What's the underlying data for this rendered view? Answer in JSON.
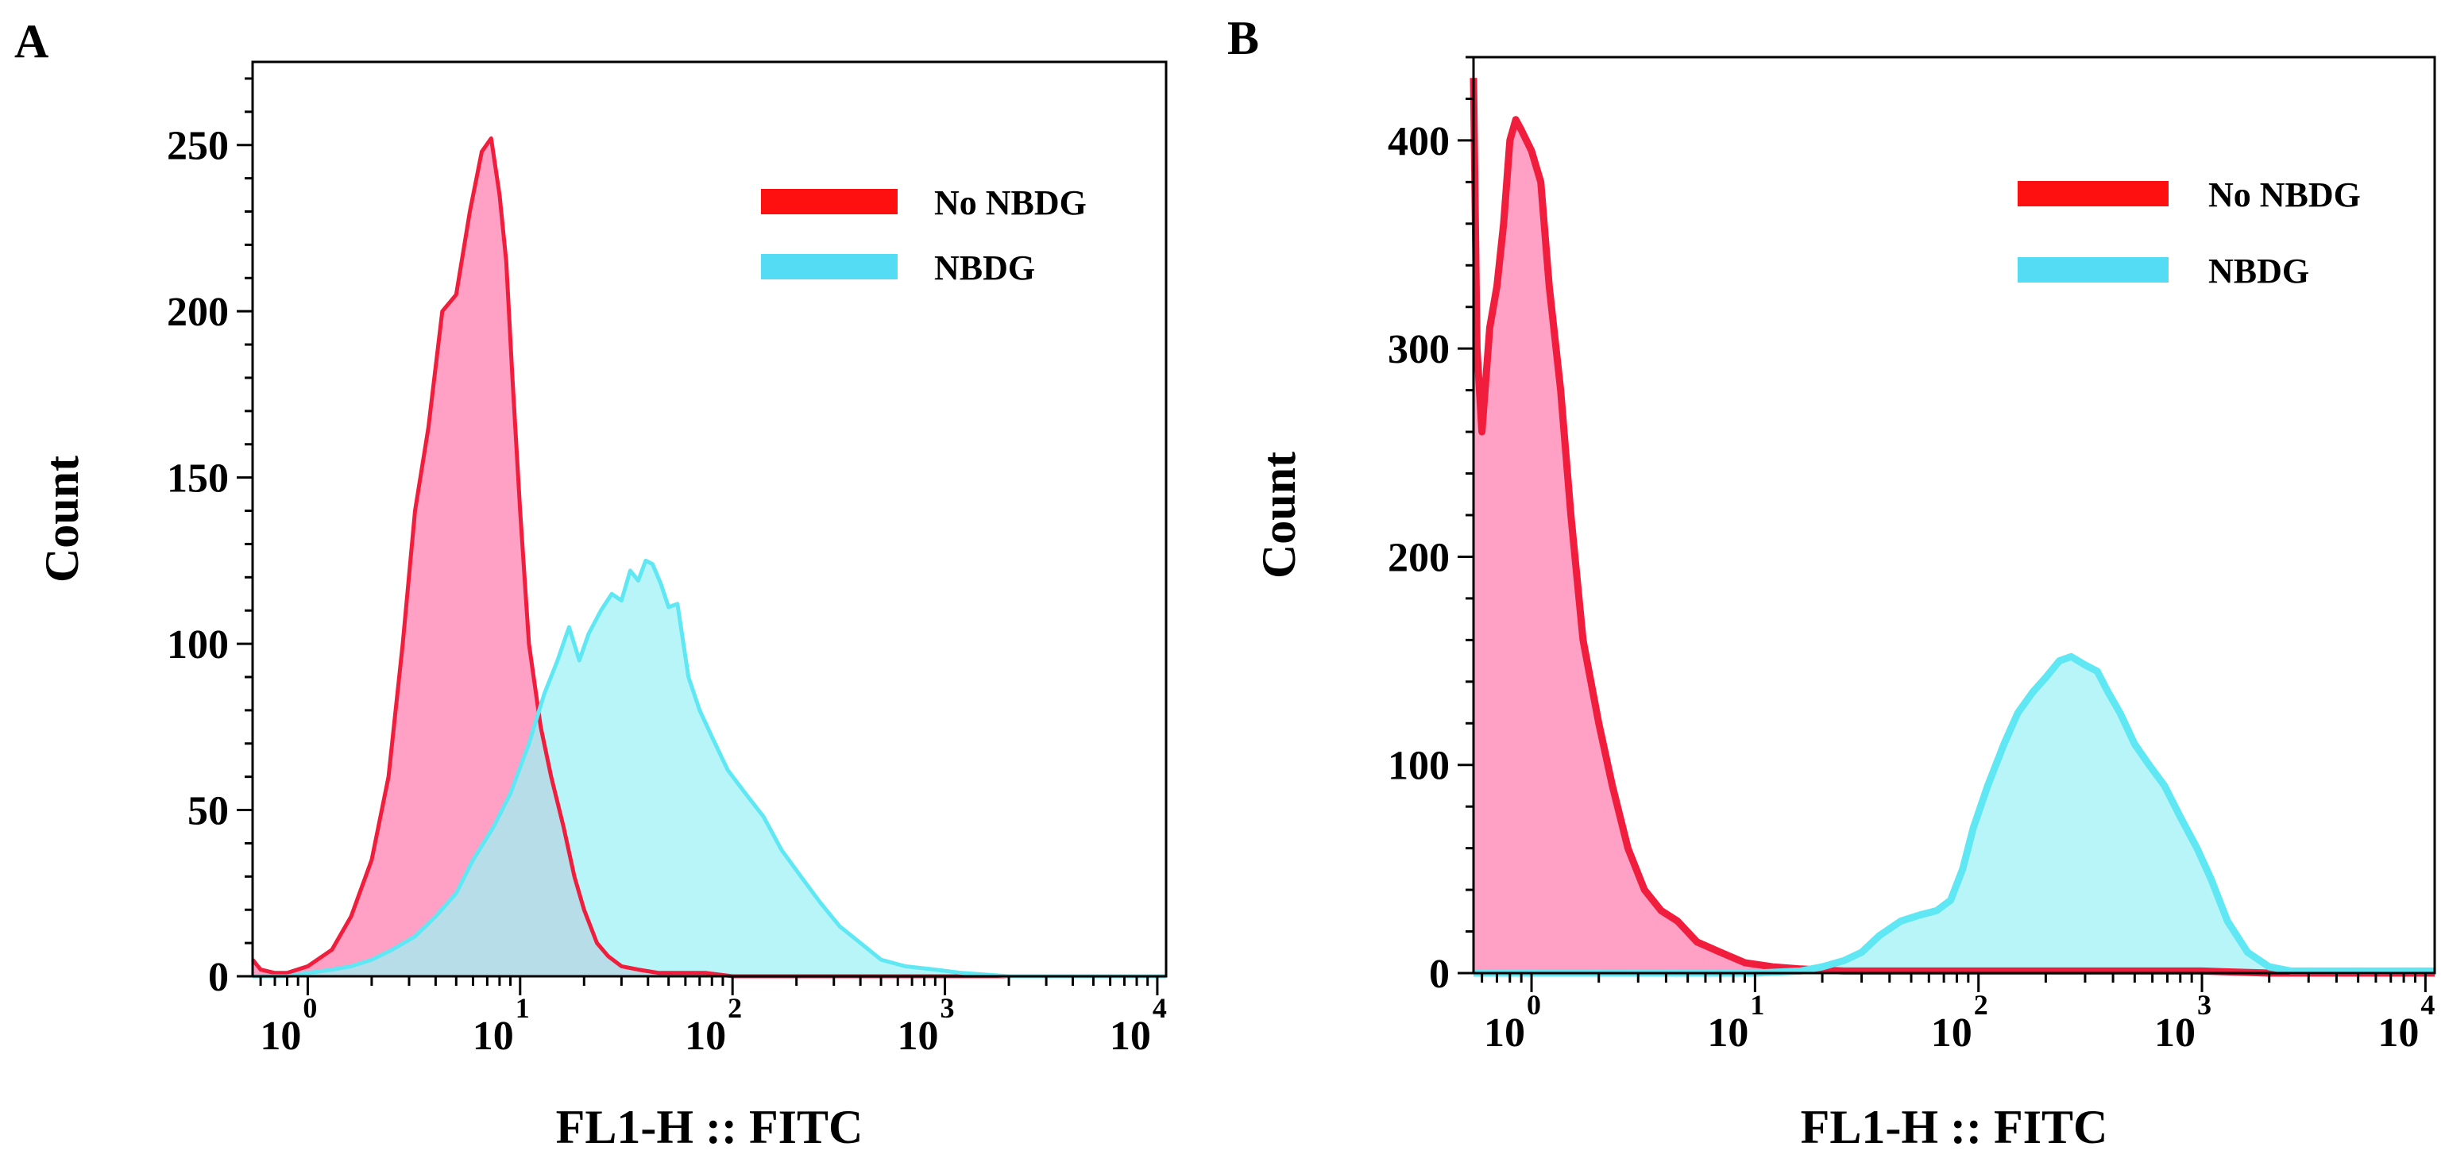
{
  "chart_data": [
    {
      "panel": "A",
      "type": "area",
      "xlabel": "FL1-H :: FITC",
      "ylabel": "Count",
      "x_scale": "log",
      "xlim": [
        0.55,
        11000
      ],
      "ylim": [
        0,
        275
      ],
      "x_ticks": [
        {
          "base": "10",
          "exp": "0",
          "value": 1
        },
        {
          "base": "10",
          "exp": "1",
          "value": 10
        },
        {
          "base": "10",
          "exp": "2",
          "value": 100
        },
        {
          "base": "10",
          "exp": "3",
          "value": 1000
        },
        {
          "base": "10",
          "exp": "4",
          "value": 10000
        }
      ],
      "y_ticks": [
        "0",
        "50",
        "100",
        "150",
        "200",
        "250"
      ],
      "y_tick_values": [
        0,
        50,
        100,
        150,
        200,
        250
      ],
      "grid": false,
      "legend_position": "top-right",
      "series": [
        {
          "name": "No NBDG",
          "stroke": "#f01e3c",
          "fill": "#ff8fba",
          "x": [
            0.55,
            0.6,
            0.7,
            0.8,
            1.0,
            1.3,
            1.6,
            2.0,
            2.4,
            2.8,
            3.2,
            3.7,
            4.3,
            5.0,
            5.8,
            6.6,
            7.3,
            8.0,
            8.6,
            9.2,
            10.0,
            11.0,
            12.5,
            14.0,
            16.0,
            18.0,
            20.0,
            23.0,
            26.0,
            30.0,
            36.0,
            45.0,
            60.0,
            75.0,
            100.0,
            200.0,
            1000.0,
            11000.0
          ],
          "y": [
            5,
            2,
            1,
            1,
            3,
            8,
            18,
            35,
            60,
            100,
            140,
            165,
            200,
            205,
            230,
            248,
            252,
            235,
            215,
            180,
            140,
            100,
            75,
            60,
            45,
            30,
            20,
            10,
            6,
            3,
            2,
            1,
            1,
            1,
            0,
            0,
            0,
            0
          ]
        },
        {
          "name": "NBDG",
          "stroke": "#5fe8f4",
          "fill": "#9ff2f6",
          "x": [
            0.55,
            0.8,
            1.0,
            1.3,
            1.6,
            2.0,
            2.5,
            3.2,
            4.0,
            5.0,
            6.0,
            7.5,
            9.0,
            11.0,
            13.0,
            15.0,
            17.0,
            19.0,
            21.0,
            24.0,
            27.0,
            30.0,
            33.0,
            36.0,
            39.0,
            42.0,
            46.0,
            50.0,
            55.0,
            62.0,
            70.0,
            80.0,
            95.0,
            115.0,
            140.0,
            170.0,
            210.0,
            260.0,
            320.0,
            400.0,
            500.0,
            650.0,
            900.0,
            1200.0,
            2000.0,
            11000.0
          ],
          "y": [
            0,
            0,
            1,
            2,
            3,
            5,
            8,
            12,
            18,
            25,
            35,
            45,
            55,
            70,
            85,
            95,
            105,
            95,
            103,
            110,
            115,
            113,
            122,
            119,
            125,
            124,
            118,
            111,
            112,
            90,
            80,
            72,
            62,
            55,
            48,
            38,
            30,
            22,
            15,
            10,
            5,
            3,
            2,
            1,
            0,
            0
          ]
        }
      ]
    },
    {
      "panel": "B",
      "type": "area",
      "xlabel": "FL1-H :: FITC",
      "ylabel": "Count",
      "x_scale": "log",
      "xlim": [
        0.55,
        11000
      ],
      "ylim": [
        0,
        440
      ],
      "x_ticks": [
        {
          "base": "10",
          "exp": "0",
          "value": 1
        },
        {
          "base": "10",
          "exp": "1",
          "value": 10
        },
        {
          "base": "10",
          "exp": "2",
          "value": 100
        },
        {
          "base": "10",
          "exp": "3",
          "value": 1000
        },
        {
          "base": "10",
          "exp": "4",
          "value": 10000
        }
      ],
      "y_ticks": [
        "0",
        "100",
        "200",
        "300",
        "400"
      ],
      "y_tick_values": [
        0,
        100,
        200,
        300,
        400
      ],
      "grid": false,
      "legend_position": "top-right",
      "series": [
        {
          "name": "No NBDG",
          "stroke": "#f01e3c",
          "fill": "#ff8fba",
          "x": [
            0.55,
            0.57,
            0.6,
            0.65,
            0.7,
            0.75,
            0.8,
            0.85,
            0.9,
            1.0,
            1.1,
            1.2,
            1.35,
            1.5,
            1.7,
            2.0,
            2.3,
            2.7,
            3.2,
            3.8,
            4.5,
            5.5,
            7.0,
            9.0,
            12.0,
            16.0,
            25.0,
            100.0,
            1000.0,
            2000.0,
            11000.0
          ],
          "y": [
            430,
            300,
            260,
            310,
            330,
            360,
            400,
            410,
            405,
            395,
            380,
            330,
            280,
            220,
            160,
            120,
            90,
            60,
            40,
            30,
            25,
            15,
            10,
            5,
            3,
            2,
            1,
            1,
            1,
            0,
            0
          ]
        },
        {
          "name": "NBDG",
          "stroke": "#5fe8f4",
          "fill": "#9ff2f6",
          "x": [
            0.55,
            10.0,
            16.0,
            20.0,
            25.0,
            30.0,
            36.0,
            45.0,
            55.0,
            65.0,
            75.0,
            85.0,
            95.0,
            110.0,
            130.0,
            150.0,
            175.0,
            200.0,
            230.0,
            260.0,
            300.0,
            340.0,
            380.0,
            430.0,
            500.0,
            580.0,
            680.0,
            800.0,
            950.0,
            1100.0,
            1300.0,
            1600.0,
            2000.0,
            2500.0,
            11000.0
          ],
          "y": [
            0,
            0,
            1,
            3,
            6,
            10,
            18,
            25,
            28,
            30,
            35,
            50,
            70,
            90,
            110,
            125,
            135,
            142,
            150,
            152,
            148,
            145,
            135,
            125,
            110,
            100,
            90,
            75,
            60,
            45,
            25,
            10,
            3,
            1,
            1
          ]
        }
      ]
    }
  ]
}
